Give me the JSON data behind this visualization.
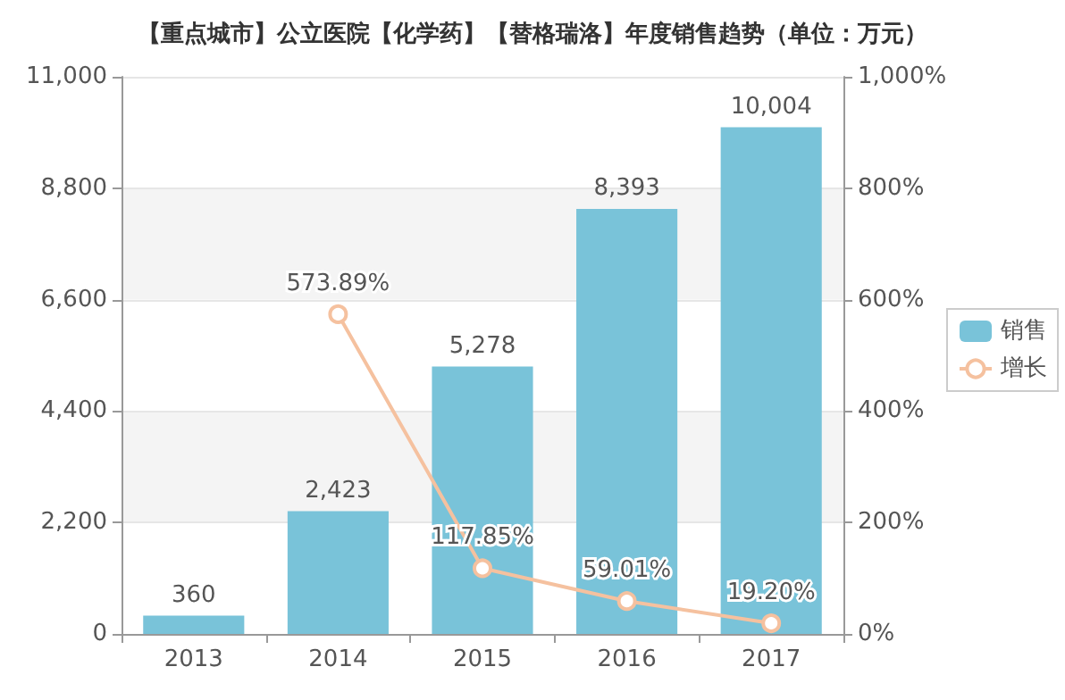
{
  "chart_data": {
    "type": "bar",
    "title": "【重点城市】公立医院【化学药】【替格瑞洛】年度销售趋势（单位：万元）",
    "categories": [
      "2013",
      "2014",
      "2015",
      "2016",
      "2017"
    ],
    "series": [
      {
        "name": "销售",
        "color": "#79c3d9",
        "values": [
          360,
          2423,
          5278,
          8393,
          10004
        ],
        "value_labels": [
          "360",
          "2,423",
          "5,278",
          "8,393",
          "10,004"
        ]
      },
      {
        "name": "增长",
        "type": "line",
        "axis": "y2",
        "color": "#f5c19f",
        "marker": "circle",
        "values": [
          null,
          573.89,
          117.85,
          59.01,
          19.2
        ],
        "value_labels": [
          null,
          "573.89%",
          "117.85%",
          "59.01%",
          "19.20%"
        ]
      }
    ],
    "ylim": [
      0,
      11000
    ],
    "yticks": [
      0,
      {
        "value": 2200,
        "label": "2,200"
      },
      {
        "value": 4400,
        "label": "4,400"
      },
      {
        "value": 6600,
        "label": "6,600"
      },
      {
        "value": 8800,
        "label": "8,800"
      },
      {
        "value": 11000,
        "label": "11,000"
      }
    ],
    "y2lim": [
      0,
      1000
    ],
    "y2ticks": [
      {
        "value": 0,
        "label": "0%"
      },
      {
        "value": 200,
        "label": "200%"
      },
      {
        "value": 400,
        "label": "400%"
      },
      {
        "value": 600,
        "label": "600%"
      },
      {
        "value": 800,
        "label": "800%"
      },
      {
        "value": 1000,
        "label": "1,000%"
      }
    ],
    "grid": "y",
    "legend": "right"
  }
}
